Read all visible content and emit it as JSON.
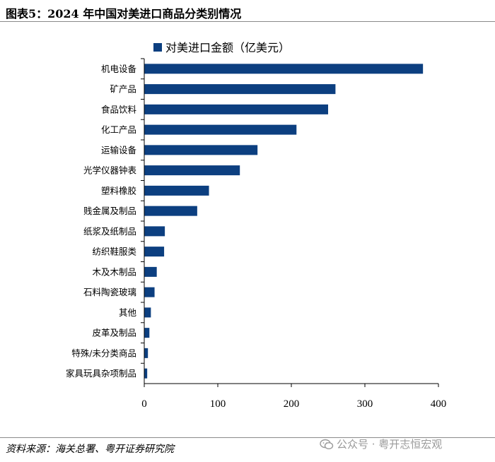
{
  "figure": {
    "title": "图表5：2024 年中国对美进口商品分类别情况",
    "source": "资料来源：海关总署、粤开证券研究院",
    "watermark": "公众号 · 粤开志恒宏观"
  },
  "colors": {
    "bar": "#0c3f80",
    "axis": "#000000",
    "rule": "#8a8a8a"
  },
  "chart_data": {
    "type": "bar",
    "orientation": "horizontal",
    "categories": [
      "机电设备",
      "矿产品",
      "食品饮料",
      "化工产品",
      "运输设备",
      "光学仪器钟表",
      "塑料橡胶",
      "贱金属及制品",
      "纸浆及纸制品",
      "纺织鞋服类",
      "木及木制品",
      "石料陶瓷玻璃",
      "其他",
      "皮革及制品",
      "特殊/未分类商品",
      "家具玩具杂项制品"
    ],
    "series": [
      {
        "name": "对美进口金额（亿美元）",
        "values": [
          379,
          260,
          250,
          207,
          154,
          130,
          88,
          72,
          28,
          27,
          17,
          14,
          9,
          7,
          5,
          4
        ]
      }
    ],
    "xlim": [
      0,
      400
    ],
    "xticks": [
      "0",
      "100",
      "200",
      "300",
      "400"
    ],
    "grid": false,
    "legend": "top-left"
  }
}
